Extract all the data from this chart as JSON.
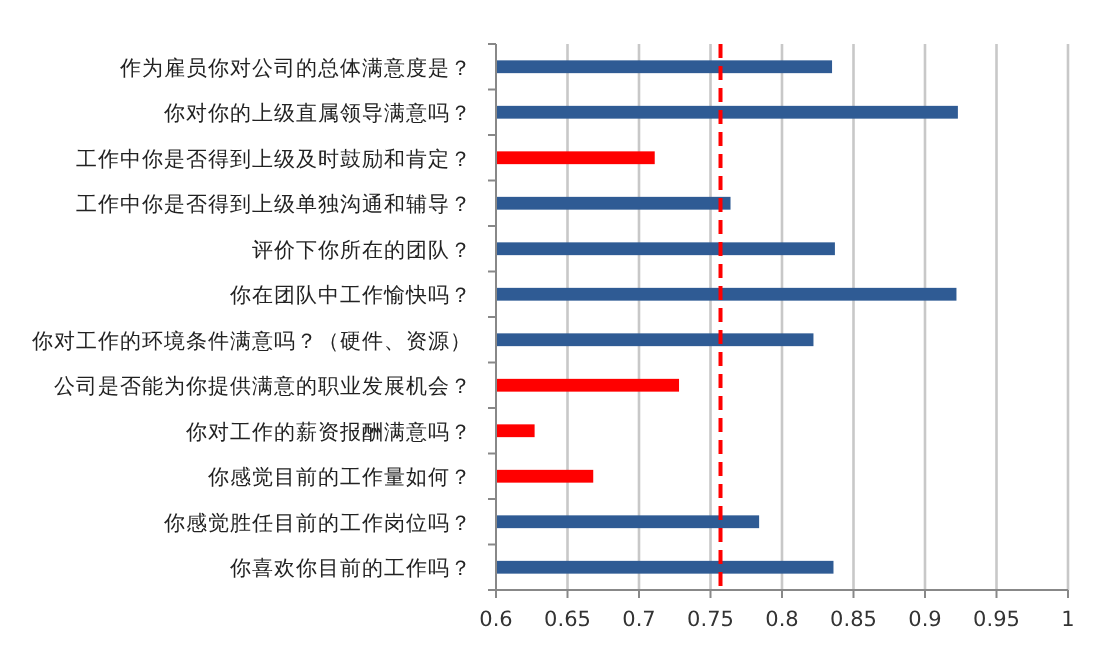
{
  "chart_data": {
    "type": "bar",
    "orientation": "horizontal",
    "categories": [
      "作为雇员你对公司的总体满意度是？",
      "你对你的上级直属领导满意吗？",
      "工作中你是否得到上级及时鼓励和肯定？",
      "工作中你是否得到上级单独沟通和辅导？",
      "评价下你所在的团队？",
      "你在团队中工作愉快吗？",
      "你对工作的环境条件满意吗？（硬件、资源）",
      "公司是否能为你提供满意的职业发展机会？",
      "你对工作的薪资报酬满意吗？",
      "你感觉目前的工作量如何？",
      "你感觉胜任目前的工作岗位吗？",
      "你喜欢你目前的工作吗？"
    ],
    "values": [
      0.835,
      0.923,
      0.711,
      0.764,
      0.837,
      0.922,
      0.822,
      0.728,
      0.627,
      0.668,
      0.784,
      0.836
    ],
    "colors": [
      "#2f5b94",
      "#2f5b94",
      "#ff0000",
      "#2f5b94",
      "#2f5b94",
      "#2f5b94",
      "#2f5b94",
      "#ff0000",
      "#ff0000",
      "#ff0000",
      "#2f5b94",
      "#2f5b94"
    ],
    "xlim": [
      0.6,
      1
    ],
    "xticks": [
      0.6,
      0.65,
      0.7,
      0.75,
      0.8,
      0.85,
      0.9,
      0.95,
      1
    ],
    "grid": "x",
    "ref_lines": [
      {
        "axis": "x",
        "value": 0.757,
        "color": "#ff0000",
        "line_style": "dashed"
      }
    ]
  }
}
